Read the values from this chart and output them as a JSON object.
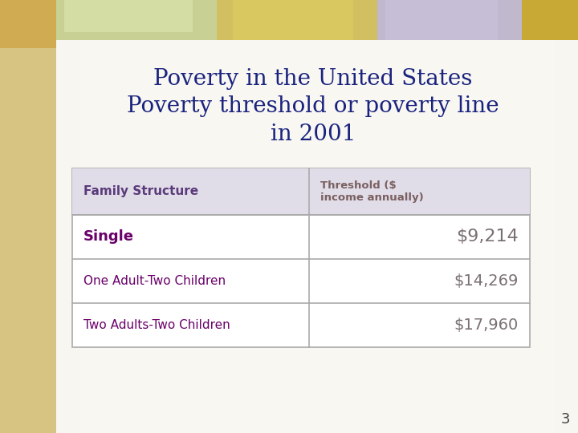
{
  "title_line1": "Poverty in the United States",
  "title_line2": "Poverty threshold or poverty line",
  "title_line3": "in 2001",
  "title_color": "#1a237e",
  "outer_bg": "#e8dfc0",
  "inner_bg": "#f5f2ea",
  "table_header": [
    "Family Structure",
    "Threshold ($\nincome annually)"
  ],
  "table_rows": [
    [
      "Single",
      "$9,214"
    ],
    [
      "One Adult-Two Children",
      "$14,269"
    ],
    [
      "Two Adults-Two Children",
      "$17,960"
    ]
  ],
  "header_bg": "#e0dce8",
  "col1_text_header": "#5a3a7a",
  "col2_text_header": "#7a6060",
  "col1_text_single": "#6a006a",
  "col1_text_normal": "#6a006a",
  "col2_text": "#7a7070",
  "border_color": "#aaaaaa",
  "page_number": "3",
  "top_strip_colors": [
    "#d4c490",
    "#c8d4a0",
    "#b8ccd0",
    "#c8c0d8",
    "#c8b870"
  ],
  "left_strip_color": "#d4c490"
}
